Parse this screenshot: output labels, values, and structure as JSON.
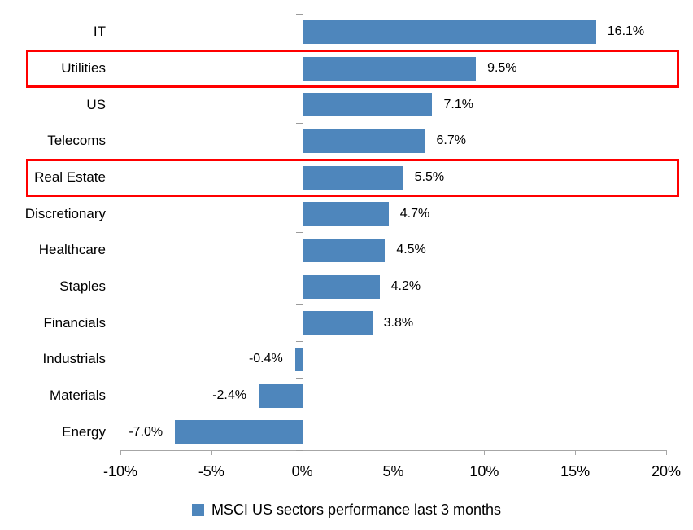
{
  "chart_data": {
    "type": "bar",
    "orientation": "horizontal",
    "title": "",
    "categories": [
      "IT",
      "Utilities",
      "US",
      "Telecoms",
      "Real Estate",
      "Discretionary",
      "Healthcare",
      "Staples",
      "Financials",
      "Industrials",
      "Materials",
      "Energy"
    ],
    "values": [
      16.1,
      9.5,
      7.1,
      6.7,
      5.5,
      4.7,
      4.5,
      4.2,
      3.8,
      -0.4,
      -2.4,
      -7.0
    ],
    "value_labels": [
      "16.1%",
      "9.5%",
      "7.1%",
      "6.7%",
      "5.5%",
      "4.7%",
      "4.5%",
      "4.2%",
      "3.8%",
      "-0.4%",
      "-2.4%",
      "-7.0%"
    ],
    "xlim": [
      -10,
      20
    ],
    "x_ticks": [
      -10,
      -5,
      0,
      5,
      10,
      15,
      20
    ],
    "x_tick_labels": [
      "-10%",
      "-5%",
      "0%",
      "5%",
      "10%",
      "15%",
      "20%"
    ],
    "grid": false,
    "legend": "MSCI US sectors performance last 3 months",
    "legend_position": "bottom",
    "highlighted_categories": [
      "Utilities",
      "Real Estate"
    ],
    "colors": {
      "bar": "#4e86bc",
      "highlight_box": "#ff0000",
      "axis": "#a6a6a6",
      "text": "#000000"
    }
  }
}
